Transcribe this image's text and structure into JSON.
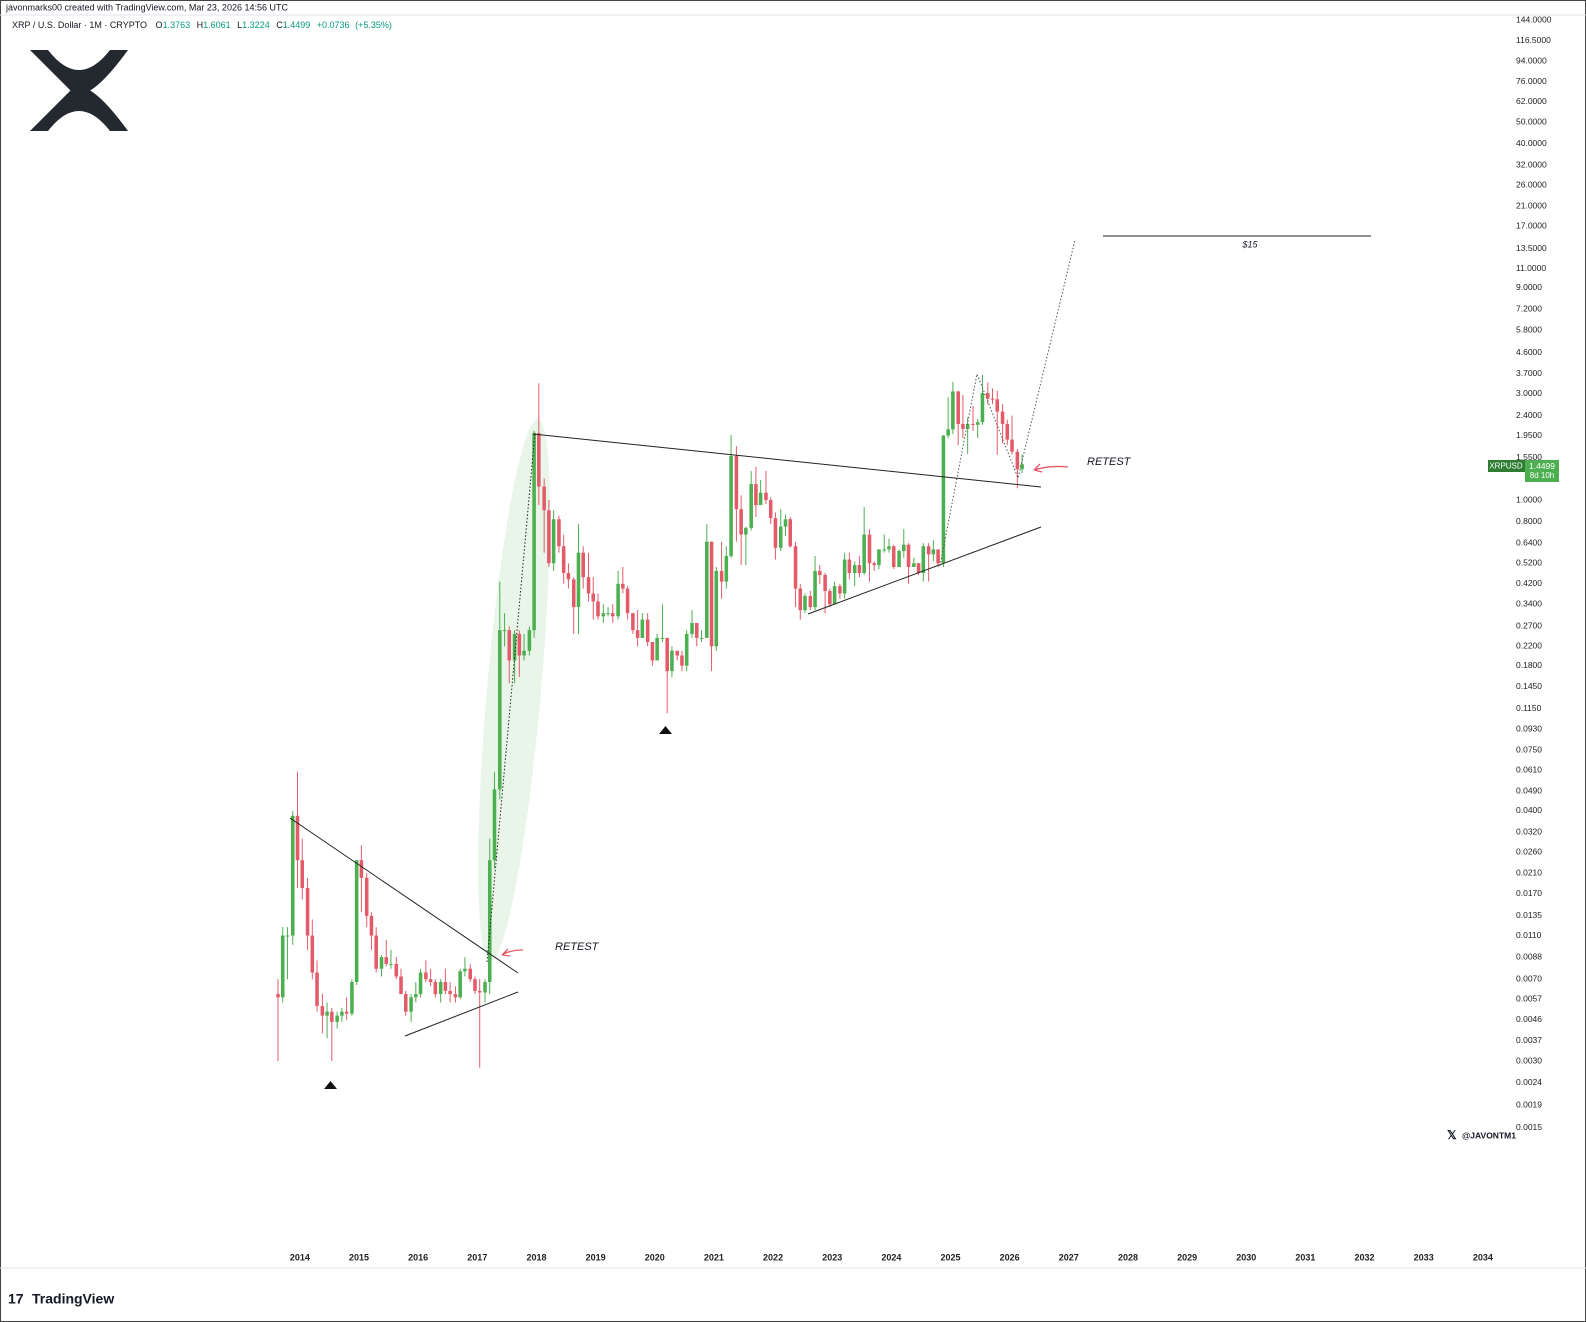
{
  "header": {
    "creator": "javonmarks00 created with TradingView.com, Mar 23, 2026 14:56 UTC",
    "symbol": "XRP / U.S. Dollar · 1M · CRYPTO",
    "ohlc_letters": [
      "O",
      "H",
      "L",
      "C"
    ],
    "change": {
      "value": 0.0736,
      "label": "+0.0736"
    },
    "change_percent": {
      "value": 5.35,
      "label": "(+5.35%)"
    }
  },
  "chart_data": {
    "type": "candlestick",
    "log_scale": true,
    "grid": false,
    "up_color": "#4caf50",
    "down_color": "#e35a68",
    "xlim": [
      2008.93,
      2034.29
    ],
    "xticks": [
      2014,
      2015,
      2016,
      2017,
      2018,
      2019,
      2020,
      2021,
      2022,
      2023,
      2024,
      2025,
      2026,
      2027,
      2028,
      2029,
      2030,
      2031,
      2032,
      2033,
      2034
    ],
    "ylim": [
      0.00047,
      160
    ],
    "yticks": [
      {
        "value": 144,
        "label": "144.0000"
      },
      {
        "value": 116.5,
        "label": "116.5000"
      },
      {
        "value": 94,
        "label": "94.0000"
      },
      {
        "value": 76,
        "label": "76.0000"
      },
      {
        "value": 62,
        "label": "62.0000"
      },
      {
        "value": 50,
        "label": "50.0000"
      },
      {
        "value": 40,
        "label": "40.0000"
      },
      {
        "value": 32,
        "label": "32.0000"
      },
      {
        "value": 26,
        "label": "26.0000"
      },
      {
        "value": 21,
        "label": "21.0000"
      },
      {
        "value": 17,
        "label": "17.0000"
      },
      {
        "value": 13.5,
        "label": "13.5000"
      },
      {
        "value": 11,
        "label": "11.0000"
      },
      {
        "value": 9,
        "label": "9.0000"
      },
      {
        "value": 7.2,
        "label": "7.2000"
      },
      {
        "value": 5.8,
        "label": "5.8000"
      },
      {
        "value": 4.6,
        "label": "4.6000"
      },
      {
        "value": 3.7,
        "label": "3.7000"
      },
      {
        "value": 3,
        "label": "3.0000"
      },
      {
        "value": 2.4,
        "label": "2.4000"
      },
      {
        "value": 1.95,
        "label": "1.9500"
      },
      {
        "value": 1.55,
        "label": "1.5500"
      },
      {
        "value": 1,
        "label": "1.0000"
      },
      {
        "value": 0.8,
        "label": "0.8000"
      },
      {
        "value": 0.64,
        "label": "0.6400"
      },
      {
        "value": 0.52,
        "label": "0.5200"
      },
      {
        "value": 0.42,
        "label": "0.4200"
      },
      {
        "value": 0.34,
        "label": "0.3400"
      },
      {
        "value": 0.27,
        "label": "0.2700"
      },
      {
        "value": 0.22,
        "label": "0.2200"
      },
      {
        "value": 0.18,
        "label": "0.1800"
      },
      {
        "value": 0.145,
        "label": "0.1450"
      },
      {
        "value": 0.115,
        "label": "0.1150"
      },
      {
        "value": 0.093,
        "label": "0.0930"
      },
      {
        "value": 0.075,
        "label": "0.0750"
      },
      {
        "value": 0.061,
        "label": "0.0610"
      },
      {
        "value": 0.049,
        "label": "0.0490"
      },
      {
        "value": 0.04,
        "label": "0.0400"
      },
      {
        "value": 0.032,
        "label": "0.0320"
      },
      {
        "value": 0.026,
        "label": "0.0260"
      },
      {
        "value": 0.021,
        "label": "0.0210"
      },
      {
        "value": 0.017,
        "label": "0.0170"
      },
      {
        "value": 0.0135,
        "label": "0.0135"
      },
      {
        "value": 0.011,
        "label": "0.0110"
      },
      {
        "value": 0.0088,
        "label": "0.0088"
      },
      {
        "value": 0.007,
        "label": "0.0070"
      },
      {
        "value": 0.0057,
        "label": "0.0057"
      },
      {
        "value": 0.0046,
        "label": "0.0046"
      },
      {
        "value": 0.0037,
        "label": "0.0037"
      },
      {
        "value": 0.003,
        "label": "0.0030"
      },
      {
        "value": 0.0024,
        "label": "0.0024"
      },
      {
        "value": 0.0019,
        "label": "0.0019"
      },
      {
        "value": 0.0015,
        "label": "0.0015"
      }
    ],
    "x": [
      2013.63,
      2013.71,
      2013.79,
      2013.88,
      2013.96,
      2014.04,
      2014.13,
      2014.21,
      2014.29,
      2014.38,
      2014.46,
      2014.54,
      2014.63,
      2014.71,
      2014.79,
      2014.88,
      2014.96,
      2015.04,
      2015.13,
      2015.21,
      2015.29,
      2015.38,
      2015.46,
      2015.54,
      2015.63,
      2015.71,
      2015.79,
      2015.88,
      2015.96,
      2016.04,
      2016.13,
      2016.21,
      2016.29,
      2016.38,
      2016.46,
      2016.54,
      2016.63,
      2016.71,
      2016.79,
      2016.88,
      2016.96,
      2017.04,
      2017.13,
      2017.21,
      2017.29,
      2017.38,
      2017.46,
      2017.54,
      2017.63,
      2017.71,
      2017.79,
      2017.88,
      2017.96,
      2018.04,
      2018.13,
      2018.21,
      2018.29,
      2018.38,
      2018.46,
      2018.54,
      2018.63,
      2018.71,
      2018.79,
      2018.88,
      2018.96,
      2019.04,
      2019.13,
      2019.21,
      2019.29,
      2019.38,
      2019.46,
      2019.54,
      2019.63,
      2019.71,
      2019.79,
      2019.88,
      2019.96,
      2020.04,
      2020.13,
      2020.21,
      2020.29,
      2020.38,
      2020.46,
      2020.54,
      2020.63,
      2020.71,
      2020.79,
      2020.88,
      2020.96,
      2021.04,
      2021.13,
      2021.21,
      2021.29,
      2021.38,
      2021.46,
      2021.54,
      2021.63,
      2021.71,
      2021.79,
      2021.88,
      2021.96,
      2022.04,
      2022.13,
      2022.21,
      2022.29,
      2022.38,
      2022.46,
      2022.54,
      2022.63,
      2022.71,
      2022.79,
      2022.88,
      2022.96,
      2023.04,
      2023.13,
      2023.21,
      2023.29,
      2023.38,
      2023.46,
      2023.54,
      2023.63,
      2023.71,
      2023.79,
      2023.88,
      2023.96,
      2024.04,
      2024.13,
      2024.21,
      2024.29,
      2024.38,
      2024.46,
      2024.54,
      2024.63,
      2024.71,
      2024.79,
      2024.88,
      2024.96,
      2025.04,
      2025.13,
      2025.21,
      2025.29,
      2025.38,
      2025.46,
      2025.54,
      2025.63,
      2025.71,
      2025.79,
      2025.88,
      2025.96,
      2026.04,
      2026.13,
      2026.21
    ],
    "open": [
      0.006,
      0.0058,
      0.011,
      0.011,
      0.038,
      0.024,
      0.018,
      0.011,
      0.0075,
      0.0053,
      0.0048,
      0.005,
      0.0045,
      0.0048,
      0.005,
      0.0049,
      0.0068,
      0.024,
      0.02,
      0.0135,
      0.011,
      0.0078,
      0.0088,
      0.0082,
      0.0082,
      0.0072,
      0.006,
      0.005,
      0.0058,
      0.006,
      0.0075,
      0.007,
      0.0068,
      0.006,
      0.0068,
      0.0062,
      0.006,
      0.0058,
      0.0076,
      0.0078,
      0.007,
      0.0062,
      0.0061,
      0.0068,
      0.024,
      0.05,
      0.26,
      0.26,
      0.19,
      0.25,
      0.2,
      0.21,
      0.26,
      2.0,
      1.15,
      0.9,
      0.52,
      0.82,
      0.62,
      0.47,
      0.44,
      0.33,
      0.58,
      0.45,
      0.38,
      0.35,
      0.3,
      0.31,
      0.31,
      0.3,
      0.42,
      0.4,
      0.31,
      0.26,
      0.24,
      0.29,
      0.23,
      0.19,
      0.24,
      0.24,
      0.17,
      0.21,
      0.2,
      0.18,
      0.25,
      0.28,
      0.24,
      0.24,
      0.65,
      0.22,
      0.48,
      0.43,
      0.56,
      1.58,
      0.91,
      0.7,
      0.75,
      1.18,
      0.95,
      1.08,
      1.0,
      0.83,
      0.61,
      0.76,
      0.82,
      0.62,
      0.4,
      0.32,
      0.37,
      0.33,
      0.48,
      0.46,
      0.39,
      0.34,
      0.41,
      0.38,
      0.54,
      0.47,
      0.51,
      0.47,
      0.7,
      0.52,
      0.51,
      0.6,
      0.6,
      0.62,
      0.5,
      0.59,
      0.63,
      0.5,
      0.52,
      0.47,
      0.62,
      0.57,
      0.6,
      0.52,
      1.95,
      2.08,
      3.08,
      2.2,
      2.09,
      2.2,
      2.18,
      2.24,
      3.03,
      2.86,
      2.84,
      2.5,
      2.2,
      1.87,
      1.65,
      1.3763
    ],
    "high": [
      0.007,
      0.012,
      0.012,
      0.04,
      0.06,
      0.03,
      0.02,
      0.013,
      0.0085,
      0.006,
      0.0055,
      0.0052,
      0.005,
      0.0052,
      0.0058,
      0.007,
      0.024,
      0.028,
      0.021,
      0.014,
      0.012,
      0.009,
      0.0105,
      0.0095,
      0.0088,
      0.0078,
      0.0062,
      0.006,
      0.0068,
      0.0078,
      0.0085,
      0.0078,
      0.007,
      0.007,
      0.0078,
      0.0068,
      0.0065,
      0.0078,
      0.0088,
      0.0082,
      0.0072,
      0.007,
      0.007,
      0.03,
      0.06,
      0.43,
      0.31,
      0.27,
      0.26,
      0.26,
      0.25,
      0.27,
      2.05,
      3.35,
      1.25,
      1.0,
      0.9,
      0.85,
      0.7,
      0.52,
      0.45,
      0.78,
      0.62,
      0.58,
      0.45,
      0.38,
      0.34,
      0.33,
      0.34,
      0.48,
      0.5,
      0.41,
      0.31,
      0.32,
      0.31,
      0.31,
      0.23,
      0.25,
      0.34,
      0.24,
      0.22,
      0.21,
      0.21,
      0.26,
      0.32,
      0.28,
      0.26,
      0.78,
      0.65,
      0.5,
      0.65,
      0.62,
      1.96,
      1.75,
      1.05,
      0.76,
      1.35,
      1.41,
      1.23,
      1.35,
      1.03,
      0.88,
      0.91,
      0.86,
      0.84,
      0.65,
      0.42,
      0.38,
      0.39,
      0.56,
      0.51,
      0.47,
      0.4,
      0.43,
      0.42,
      0.58,
      0.58,
      0.53,
      0.56,
      0.93,
      0.74,
      0.53,
      0.6,
      0.7,
      0.67,
      0.63,
      0.6,
      0.74,
      0.64,
      0.55,
      0.52,
      0.64,
      0.64,
      0.66,
      0.6,
      1.96,
      2.9,
      3.4,
      3.1,
      2.97,
      2.35,
      2.65,
      2.32,
      3.66,
      3.38,
      3.18,
      3.1,
      2.7,
      2.3,
      2.4,
      1.7,
      1.6061
    ],
    "low": [
      0.003,
      0.0055,
      0.007,
      0.01,
      0.018,
      0.016,
      0.0095,
      0.007,
      0.005,
      0.004,
      0.0038,
      0.003,
      0.0042,
      0.0045,
      0.0046,
      0.0048,
      0.0066,
      0.014,
      0.012,
      0.0095,
      0.0075,
      0.0072,
      0.008,
      0.0078,
      0.007,
      0.006,
      0.0048,
      0.0045,
      0.0055,
      0.0058,
      0.0068,
      0.0065,
      0.0058,
      0.0055,
      0.006,
      0.0055,
      0.0055,
      0.0057,
      0.0072,
      0.0068,
      0.006,
      0.0028,
      0.0055,
      0.006,
      0.022,
      0.045,
      0.22,
      0.15,
      0.15,
      0.16,
      0.19,
      0.2,
      0.24,
      0.95,
      0.58,
      0.5,
      0.48,
      0.58,
      0.42,
      0.4,
      0.25,
      0.25,
      0.4,
      0.35,
      0.29,
      0.29,
      0.28,
      0.3,
      0.28,
      0.29,
      0.38,
      0.29,
      0.25,
      0.22,
      0.24,
      0.22,
      0.18,
      0.19,
      0.23,
      0.11,
      0.16,
      0.19,
      0.17,
      0.17,
      0.24,
      0.22,
      0.23,
      0.24,
      0.17,
      0.21,
      0.36,
      0.4,
      0.55,
      0.65,
      0.51,
      0.51,
      0.73,
      0.84,
      0.95,
      0.96,
      0.78,
      0.54,
      0.59,
      0.69,
      0.61,
      0.33,
      0.29,
      0.31,
      0.32,
      0.32,
      0.42,
      0.31,
      0.33,
      0.34,
      0.36,
      0.36,
      0.44,
      0.41,
      0.45,
      0.46,
      0.43,
      0.48,
      0.49,
      0.58,
      0.58,
      0.49,
      0.5,
      0.55,
      0.42,
      0.5,
      0.46,
      0.43,
      0.43,
      0.53,
      0.5,
      0.5,
      1.9,
      1.98,
      1.77,
      1.9,
      1.61,
      2.05,
      1.9,
      2.18,
      2.7,
      2.7,
      1.6,
      1.8,
      1.77,
      1.6,
      1.13,
      1.3224
    ],
    "close": [
      0.0058,
      0.011,
      0.011,
      0.038,
      0.024,
      0.018,
      0.011,
      0.0075,
      0.0053,
      0.0048,
      0.005,
      0.0045,
      0.0048,
      0.005,
      0.0049,
      0.0068,
      0.024,
      0.02,
      0.0135,
      0.011,
      0.0078,
      0.0088,
      0.0082,
      0.0082,
      0.0072,
      0.006,
      0.005,
      0.0058,
      0.006,
      0.0075,
      0.007,
      0.0068,
      0.006,
      0.0068,
      0.0062,
      0.006,
      0.0058,
      0.0076,
      0.0078,
      0.007,
      0.0062,
      0.0061,
      0.0068,
      0.024,
      0.05,
      0.26,
      0.26,
      0.19,
      0.25,
      0.2,
      0.21,
      0.26,
      2.0,
      1.15,
      0.9,
      0.52,
      0.82,
      0.62,
      0.47,
      0.44,
      0.33,
      0.58,
      0.45,
      0.38,
      0.35,
      0.3,
      0.31,
      0.31,
      0.3,
      0.42,
      0.4,
      0.31,
      0.26,
      0.24,
      0.29,
      0.23,
      0.19,
      0.24,
      0.24,
      0.17,
      0.21,
      0.2,
      0.18,
      0.25,
      0.28,
      0.24,
      0.24,
      0.65,
      0.22,
      0.48,
      0.43,
      0.56,
      1.58,
      0.91,
      0.7,
      0.75,
      1.18,
      0.95,
      1.08,
      1.0,
      0.83,
      0.61,
      0.76,
      0.82,
      0.62,
      0.4,
      0.32,
      0.37,
      0.33,
      0.48,
      0.46,
      0.39,
      0.34,
      0.41,
      0.38,
      0.54,
      0.47,
      0.51,
      0.47,
      0.7,
      0.52,
      0.51,
      0.6,
      0.6,
      0.62,
      0.5,
      0.59,
      0.63,
      0.5,
      0.52,
      0.47,
      0.62,
      0.57,
      0.6,
      0.52,
      1.95,
      2.08,
      3.08,
      2.2,
      2.09,
      2.2,
      2.18,
      2.24,
      3.03,
      2.86,
      2.84,
      2.5,
      2.2,
      1.87,
      1.65,
      1.3763,
      1.4499
    ],
    "price_label": {
      "symbol": "XRPUSD",
      "countdown": "8d 10h"
    },
    "annotations": {
      "retest_left": "RETEST",
      "retest_right": "RETEST",
      "target": "$15"
    }
  },
  "watermark": "@JAVONTM1",
  "brand": "TradingView"
}
